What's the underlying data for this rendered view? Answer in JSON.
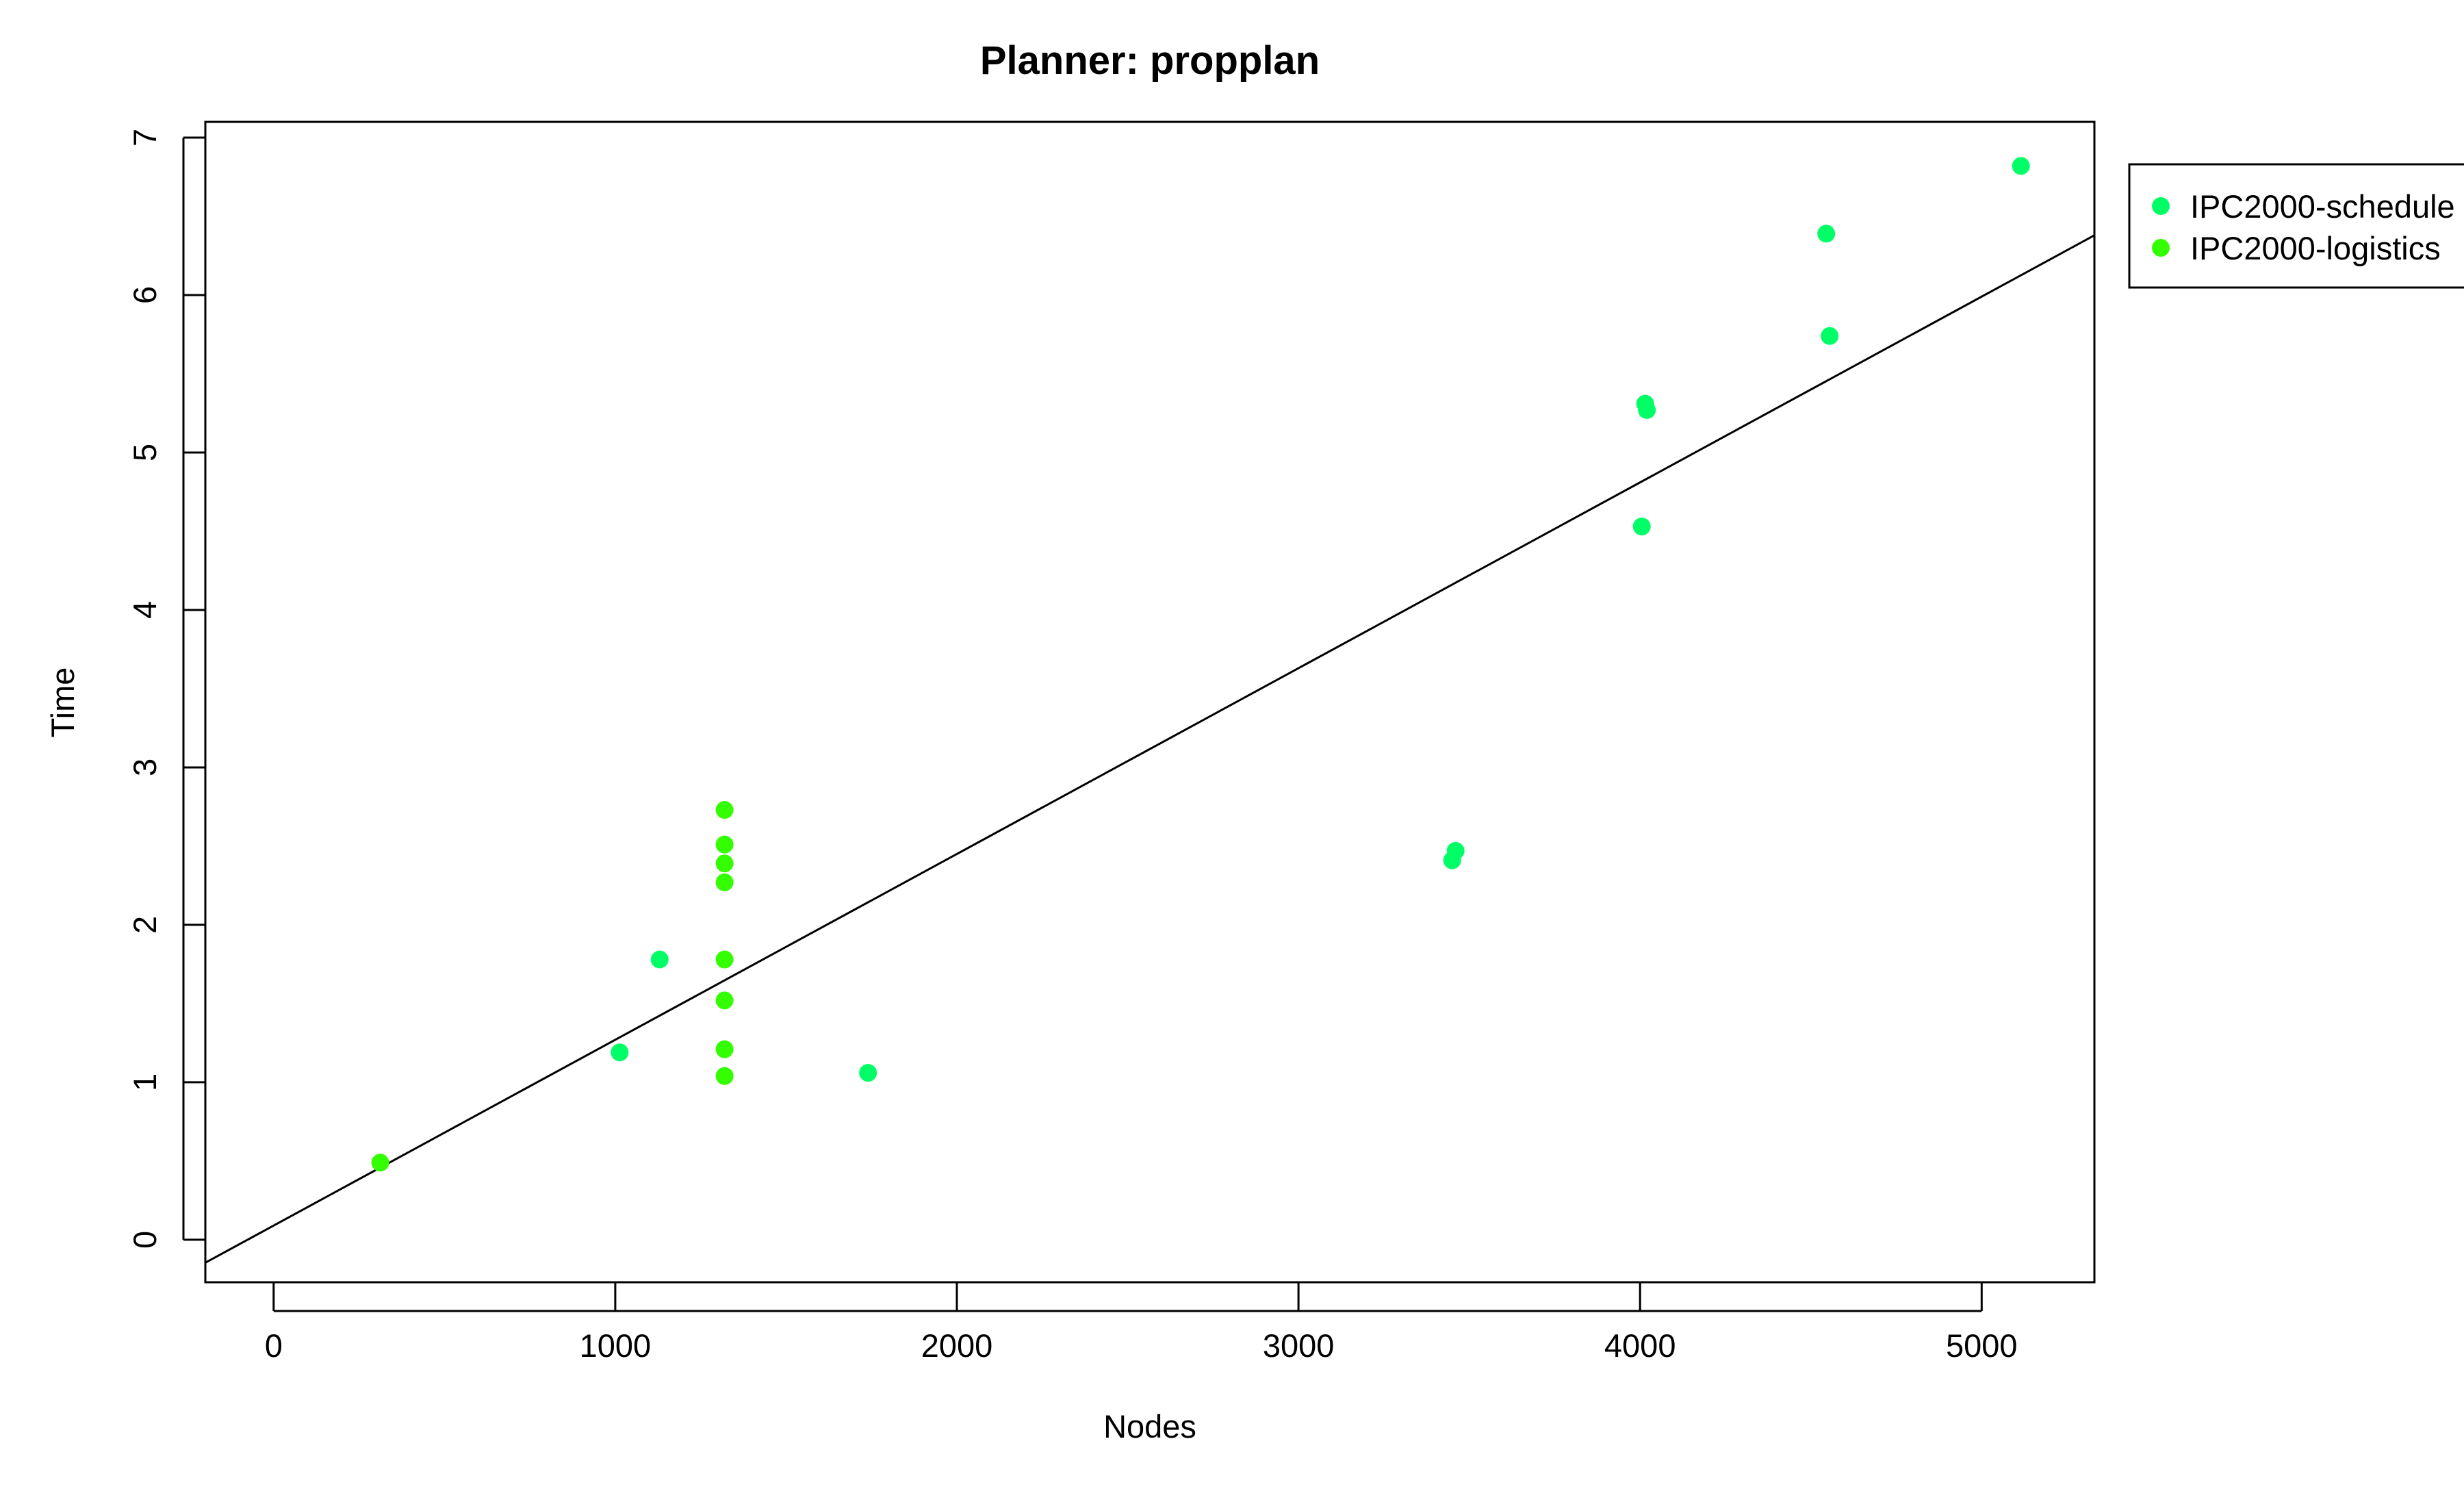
{
  "chart_data": {
    "type": "scatter",
    "title": "Planner: propplan",
    "xlabel": "Nodes",
    "ylabel": "Time",
    "xlim": [
      -200,
      5330
    ],
    "ylim": [
      -0.27,
      7.1
    ],
    "x_ticks": [
      "0",
      "1000",
      "2000",
      "3000",
      "4000",
      "5000"
    ],
    "y_ticks": [
      "0",
      "1",
      "2",
      "3",
      "4",
      "5",
      "6",
      "7"
    ],
    "grid": false,
    "legend_position": "right",
    "series": [
      {
        "name": "IPC2000-schedule",
        "color": "#00FF66",
        "points": [
          [
            1013,
            1.19
          ],
          [
            1130,
            1.78
          ],
          [
            1740,
            1.06
          ],
          [
            3450,
            2.41
          ],
          [
            3460,
            2.47
          ],
          [
            4005,
            4.53
          ],
          [
            4015,
            5.31
          ],
          [
            4020,
            5.27
          ],
          [
            4545,
            6.39
          ],
          [
            4555,
            5.74
          ],
          [
            5115,
            6.82
          ]
        ]
      },
      {
        "name": "IPC2000-logistics",
        "color": "#33FF00",
        "points": [
          [
            312,
            0.49
          ],
          [
            1320,
            2.73
          ],
          [
            1320,
            2.51
          ],
          [
            1320,
            2.39
          ],
          [
            1320,
            2.27
          ],
          [
            1320,
            1.78
          ],
          [
            1320,
            1.52
          ],
          [
            1320,
            1.21
          ],
          [
            1320,
            1.04
          ]
        ]
      }
    ],
    "fit_line": {
      "type": "linear",
      "intercept": 0.09,
      "slope": 0.00118
    }
  }
}
